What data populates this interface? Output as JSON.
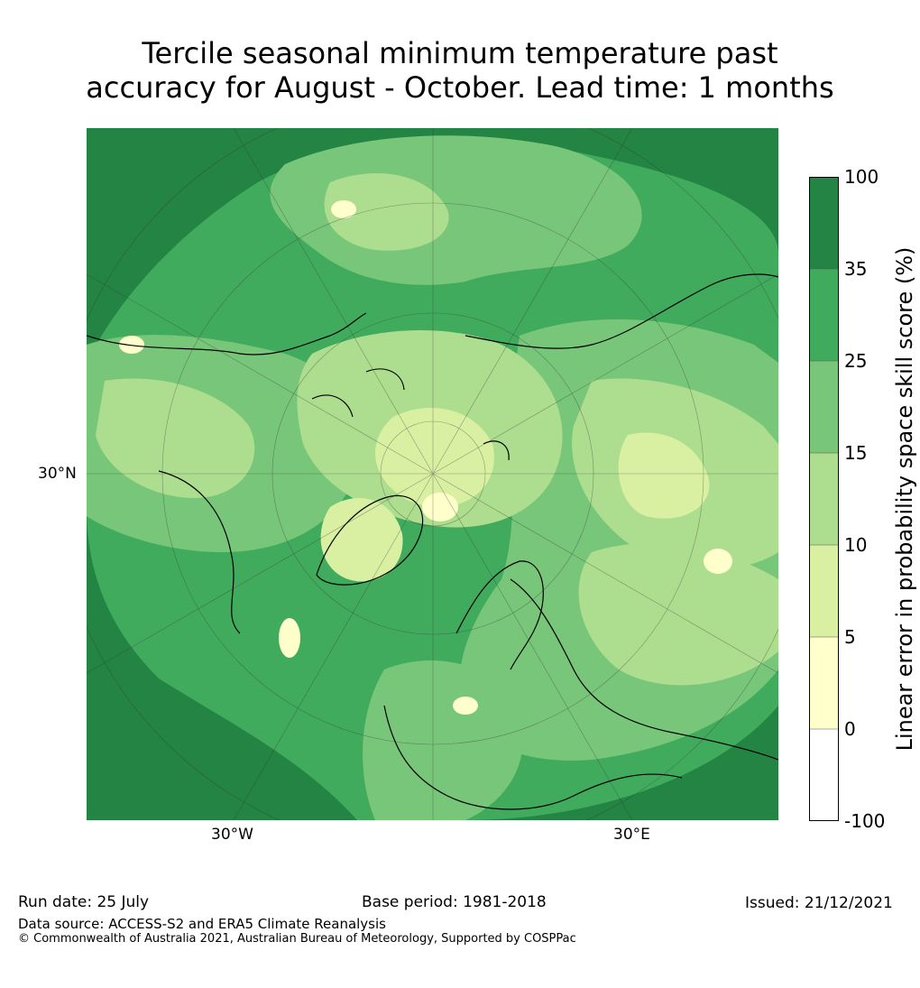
{
  "title": {
    "line1": "Tercile seasonal minimum temperature past",
    "line2": "accuracy for August - October. Lead time: 1 months"
  },
  "map": {
    "projection": "north-polar-stereographic",
    "gridlines": true,
    "coastlines": true,
    "axis_labels": {
      "lat": "30°N",
      "lon_left": "30°W",
      "lon_right": "30°E"
    }
  },
  "colorbar": {
    "label": "Linear error in probability space skill score (%)",
    "ticks": [
      "100",
      "35",
      "25",
      "15",
      "10",
      "5",
      "0",
      "-100"
    ],
    "bins": [
      {
        "range": "-100 to 0",
        "color": "#ffffff"
      },
      {
        "range": "0 to 5",
        "color": "#ffffcc"
      },
      {
        "range": "5 to 10",
        "color": "#d9f0a3"
      },
      {
        "range": "10 to 15",
        "color": "#addd8e"
      },
      {
        "range": "15 to 25",
        "color": "#78c679"
      },
      {
        "range": "25 to 35",
        "color": "#41ab5d"
      },
      {
        "range": "35 to 100",
        "color": "#238443"
      }
    ]
  },
  "footer": {
    "run_date": "Run date: 25 July",
    "base_period": "Base period: 1981-2018",
    "issued": "Issued: 21/12/2021",
    "data_source": "Data source: ACCESS-S2 and ERA5 Climate Reanalysis",
    "copyright": "© Commonwealth of Australia 2021, Australian Bureau of Meteorology, Supported by COSPPac"
  }
}
